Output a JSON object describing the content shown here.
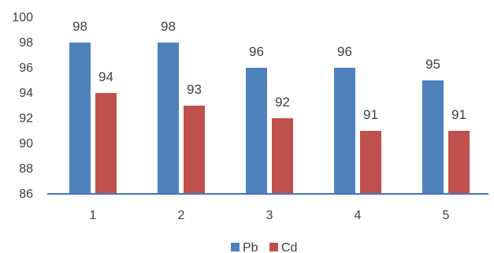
{
  "chart_data": {
    "type": "bar",
    "title": "",
    "xlabel": "",
    "ylabel": "",
    "categories": [
      "1",
      "2",
      "3",
      "4",
      "5"
    ],
    "ylim": [
      86,
      100
    ],
    "yticks": [
      86,
      88,
      90,
      92,
      94,
      96,
      98,
      100
    ],
    "grid": false,
    "legend_position": "bottom",
    "series": [
      {
        "name": "Pb",
        "color": "#4f81bd",
        "values": [
          98,
          98,
          96,
          96,
          95
        ]
      },
      {
        "name": "Cd",
        "color": "#c0504d",
        "values": [
          94,
          93,
          92,
          91,
          91
        ]
      }
    ],
    "axis_color": "#4472c4"
  }
}
